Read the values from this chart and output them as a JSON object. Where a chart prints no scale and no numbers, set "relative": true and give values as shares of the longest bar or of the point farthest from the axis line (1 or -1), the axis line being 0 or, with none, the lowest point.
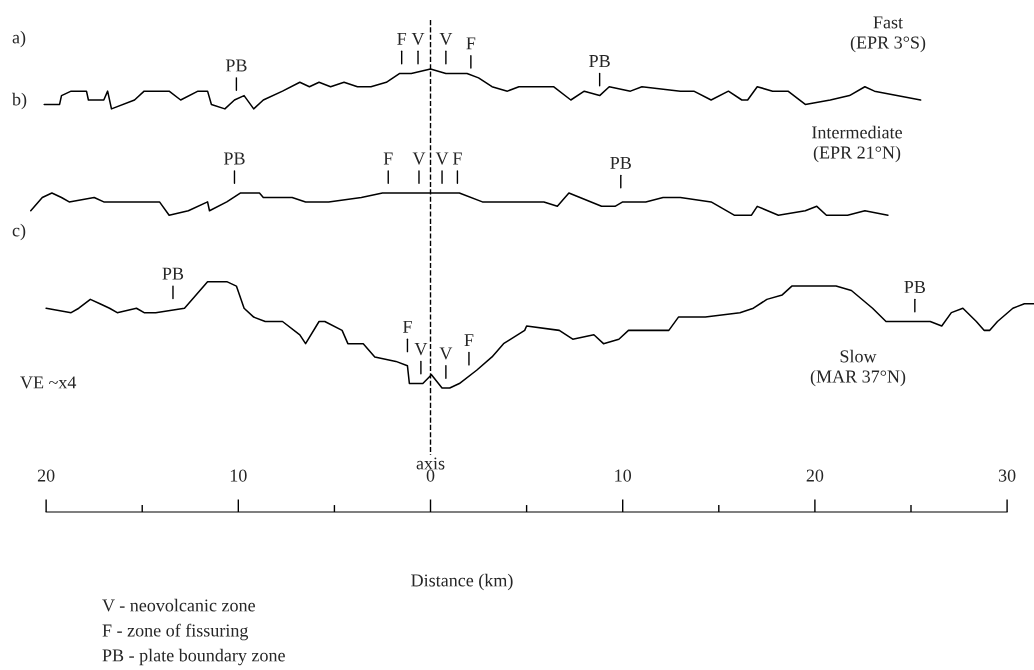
{
  "chart_data": {
    "type": "line",
    "relative": true,
    "xlim": [
      -22.4,
      31.4
    ],
    "xticks": [
      {
        "value": -20,
        "label": "20"
      },
      {
        "value": -15,
        "label": null
      },
      {
        "value": -10,
        "label": "10"
      },
      {
        "value": -5,
        "label": null
      },
      {
        "value": 0,
        "label": "0"
      },
      {
        "value": 5,
        "label": null
      },
      {
        "value": 10,
        "label": "10"
      },
      {
        "value": 15,
        "label": null
      },
      {
        "value": 20,
        "label": "20"
      },
      {
        "value": 25,
        "label": null
      },
      {
        "value": 30,
        "label": "30"
      }
    ],
    "tick_labels": "x",
    "grid": false,
    "legend": false,
    "marker": "none",
    "line_style": "solid",
    "series": [
      {
        "color": "#000000",
        "x": [
          -20.1,
          -19.3,
          -19.2,
          -18.7,
          -17.9,
          -17.8,
          -17.0,
          -16.8,
          -16.6,
          -15.4,
          -14.9,
          -14.4,
          -14.1,
          -13.6,
          -13.0,
          -12.1,
          -11.6,
          -11.4,
          -10.7,
          -10.2,
          -9.7,
          -9.2,
          -8.7,
          -7.7,
          -6.8,
          -6.3,
          -5.8,
          -5.2,
          -4.5,
          -3.8,
          -3.1,
          -2.3,
          -1.6,
          -1.0,
          0,
          0.8,
          1.9,
          2.5,
          3.2,
          4.0,
          4.6,
          5.2,
          6.4,
          7.3,
          8.0,
          8.8,
          9.3,
          10.4,
          11.0,
          13.0,
          13.7,
          14.6,
          15.5,
          16.2,
          16.5,
          17.0,
          17.8,
          18.6,
          19.5,
          20.8,
          21.8,
          22.6,
          23.1,
          25.5
        ],
        "values": [
          0.92,
          0.92,
          0.94,
          0.95,
          0.95,
          0.93,
          0.93,
          0.95,
          0.91,
          0.93,
          0.95,
          0.95,
          0.95,
          0.95,
          0.93,
          0.95,
          0.95,
          0.92,
          0.91,
          0.93,
          0.94,
          0.91,
          0.93,
          0.95,
          0.97,
          0.96,
          0.97,
          0.96,
          0.97,
          0.96,
          0.96,
          0.97,
          0.99,
          0.99,
          1,
          0.99,
          0.99,
          0.98,
          0.96,
          0.95,
          0.96,
          0.96,
          0.96,
          0.93,
          0.95,
          0.94,
          0.96,
          0.95,
          0.96,
          0.95,
          0.95,
          0.93,
          0.95,
          0.93,
          0.93,
          0.96,
          0.95,
          0.95,
          0.92,
          0.93,
          0.94,
          0.96,
          0.95,
          0.93
        ]
      },
      {
        "color": "#000000",
        "x": [
          -20.8,
          -20.2,
          -19.7,
          -19.2,
          -18.8,
          -17.5,
          -17.0,
          -16.3,
          -14.4,
          -14.1,
          -13.6,
          -12.6,
          -11.6,
          -11.5,
          -10.6,
          -9.9,
          -8.9,
          -8.7,
          -7.8,
          -7.2,
          -6.5,
          -5.3,
          -3.6,
          -2.5,
          -1.1,
          0,
          0.6,
          1.5,
          2.7,
          4.1,
          5.9,
          6.6,
          7.2,
          8.9,
          9.6,
          10.0,
          11.2,
          12.1,
          13.0,
          14.6,
          15.8,
          16.7,
          17.0,
          18.1,
          19.5,
          20.1,
          20.6,
          21.7,
          22.6,
          23.8
        ],
        "values": [
          0.68,
          0.71,
          0.72,
          0.71,
          0.7,
          0.71,
          0.7,
          0.7,
          0.7,
          0.7,
          0.67,
          0.68,
          0.7,
          0.68,
          0.7,
          0.72,
          0.72,
          0.71,
          0.71,
          0.71,
          0.7,
          0.7,
          0.71,
          0.72,
          0.72,
          0.72,
          0.72,
          0.72,
          0.7,
          0.7,
          0.7,
          0.69,
          0.72,
          0.69,
          0.69,
          0.7,
          0.7,
          0.71,
          0.71,
          0.7,
          0.67,
          0.67,
          0.69,
          0.67,
          0.68,
          0.69,
          0.67,
          0.67,
          0.68,
          0.67
        ]
      },
      {
        "color": "#000000",
        "x": [
          -20.0,
          -18.7,
          -18.3,
          -17.7,
          -17.2,
          -16.7,
          -16.3,
          -15.3,
          -14.9,
          -14.3,
          -12.8,
          -12.2,
          -11.6,
          -11.1,
          -10.6,
          -10.1,
          -9.7,
          -9.2,
          -8.6,
          -7.7,
          -6.8,
          -6.5,
          -5.8,
          -5.5,
          -4.6,
          -4.3,
          -3.5,
          -2.9,
          -1.8,
          -1.2,
          -1.1,
          -0.4,
          0.05,
          0.6,
          1.0,
          1.5,
          2.4,
          3.2,
          3.8,
          4.9,
          5.0,
          6.7,
          7.4,
          8.5,
          9.0,
          9.8,
          10.3,
          11.6,
          11.9,
          12.4,
          12.9,
          14.3,
          16.1,
          16.8,
          17.5,
          18.3,
          18.8,
          19.7,
          20.6,
          21.1,
          21.9,
          23.0,
          23.7,
          24.4,
          25.5,
          26.0,
          26.6,
          27.1,
          27.7,
          28.4,
          28.8,
          29.1,
          29.5,
          30.3,
          30.9,
          31.4
        ],
        "values": [
          0.46,
          0.45,
          0.46,
          0.48,
          0.47,
          0.46,
          0.45,
          0.46,
          0.45,
          0.45,
          0.46,
          0.49,
          0.52,
          0.52,
          0.52,
          0.51,
          0.46,
          0.44,
          0.43,
          0.43,
          0.4,
          0.38,
          0.43,
          0.43,
          0.41,
          0.38,
          0.38,
          0.35,
          0.34,
          0.33,
          0.29,
          0.29,
          0.31,
          0.28,
          0.28,
          0.29,
          0.32,
          0.35,
          0.38,
          0.41,
          0.42,
          0.41,
          0.39,
          0.4,
          0.38,
          0.39,
          0.41,
          0.41,
          0.41,
          0.41,
          0.44,
          0.44,
          0.45,
          0.46,
          0.48,
          0.49,
          0.51,
          0.51,
          0.51,
          0.51,
          0.5,
          0.46,
          0.43,
          0.43,
          0.43,
          0.43,
          0.42,
          0.45,
          0.46,
          0.43,
          0.41,
          0.41,
          0.43,
          0.46,
          0.47,
          0.47
        ]
      }
    ],
    "ref_lines": [
      {
        "axis": "x",
        "value": 0,
        "label": "axis",
        "line_style": "dashed",
        "color": "#000000"
      }
    ],
    "annotations": [
      "a)",
      "b)",
      "c)",
      "Fast\n(EPR 3°S)",
      "Intermediate\n(EPR 21°N)",
      "Slow\n(MAR 37°N)",
      "VE ~x4",
      "Distance (km)",
      "V - neovolcanic zone",
      "F - zone of fissuring",
      "PB - plate boundary zone",
      {
        "text": "PB",
        "x": -10.1,
        "y": 0.93
      },
      {
        "text": "F",
        "x": -1.5,
        "y": 0.99
      },
      {
        "text": "V",
        "x": -0.65,
        "y": 0.99
      },
      {
        "text": "V",
        "x": 0.8,
        "y": 0.99
      },
      {
        "text": "F",
        "x": 2.1,
        "y": 0.98
      },
      {
        "text": "PB",
        "x": 8.8,
        "y": 0.94
      },
      {
        "text": "PB",
        "x": -10.2,
        "y": 0.72
      },
      {
        "text": "F",
        "x": -2.2,
        "y": 0.72
      },
      {
        "text": "V",
        "x": -0.6,
        "y": 0.72
      },
      {
        "text": "V",
        "x": 0.6,
        "y": 0.72
      },
      {
        "text": "F",
        "x": 1.4,
        "y": 0.72
      },
      {
        "text": "PB",
        "x": 9.9,
        "y": 0.71
      },
      {
        "text": "PB",
        "x": -13.4,
        "y": 0.46
      },
      {
        "text": "F",
        "x": -1.2,
        "y": 0.34
      },
      {
        "text": "V",
        "x": -0.5,
        "y": 0.29
      },
      {
        "text": "V",
        "x": 0.8,
        "y": 0.28
      },
      {
        "text": "F",
        "x": 2.0,
        "y": 0.31
      },
      {
        "text": "PB",
        "x": 25.2,
        "y": 0.43
      }
    ]
  }
}
